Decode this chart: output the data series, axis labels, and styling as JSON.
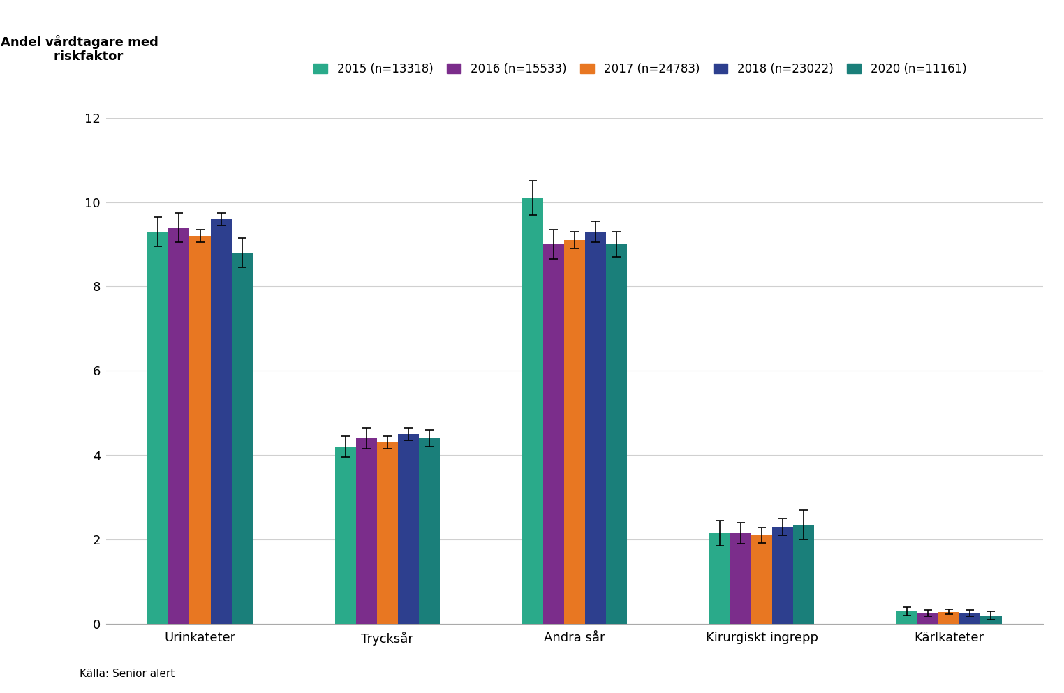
{
  "title": "Andel vårdtagare med\n    riskfaktor",
  "source": "Källa: Senior alert",
  "legend_labels": [
    "2015 (n=13318)",
    "2016 (n=15533)",
    "2017 (n=24783)",
    "2018 (n=23022)",
    "2020 (n=11161)"
  ],
  "colors": [
    "#2aaa8a",
    "#7b2d8b",
    "#e87722",
    "#2d3f8e",
    "#1a7f7a"
  ],
  "categories": [
    "Urinkateter",
    "Trycksår",
    "Andra sår",
    "Kirurgiskt ingrepp",
    "Kärlkateter"
  ],
  "values": [
    [
      9.3,
      9.4,
      9.2,
      9.6,
      8.8
    ],
    [
      4.2,
      4.4,
      4.3,
      4.5,
      4.4
    ],
    [
      10.1,
      9.0,
      9.1,
      9.3,
      9.0
    ],
    [
      2.15,
      2.15,
      2.1,
      2.3,
      2.35
    ],
    [
      0.3,
      0.25,
      0.28,
      0.25,
      0.2
    ]
  ],
  "errors": [
    [
      0.35,
      0.35,
      0.15,
      0.15,
      0.35
    ],
    [
      0.25,
      0.25,
      0.15,
      0.15,
      0.2
    ],
    [
      0.4,
      0.35,
      0.2,
      0.25,
      0.3
    ],
    [
      0.3,
      0.25,
      0.18,
      0.2,
      0.35
    ],
    [
      0.1,
      0.08,
      0.06,
      0.07,
      0.1
    ]
  ],
  "ylim": [
    0,
    12
  ],
  "yticks": [
    0,
    2,
    4,
    6,
    8,
    10,
    12
  ],
  "background_color": "#ffffff",
  "grid_color": "#d0d0d0"
}
